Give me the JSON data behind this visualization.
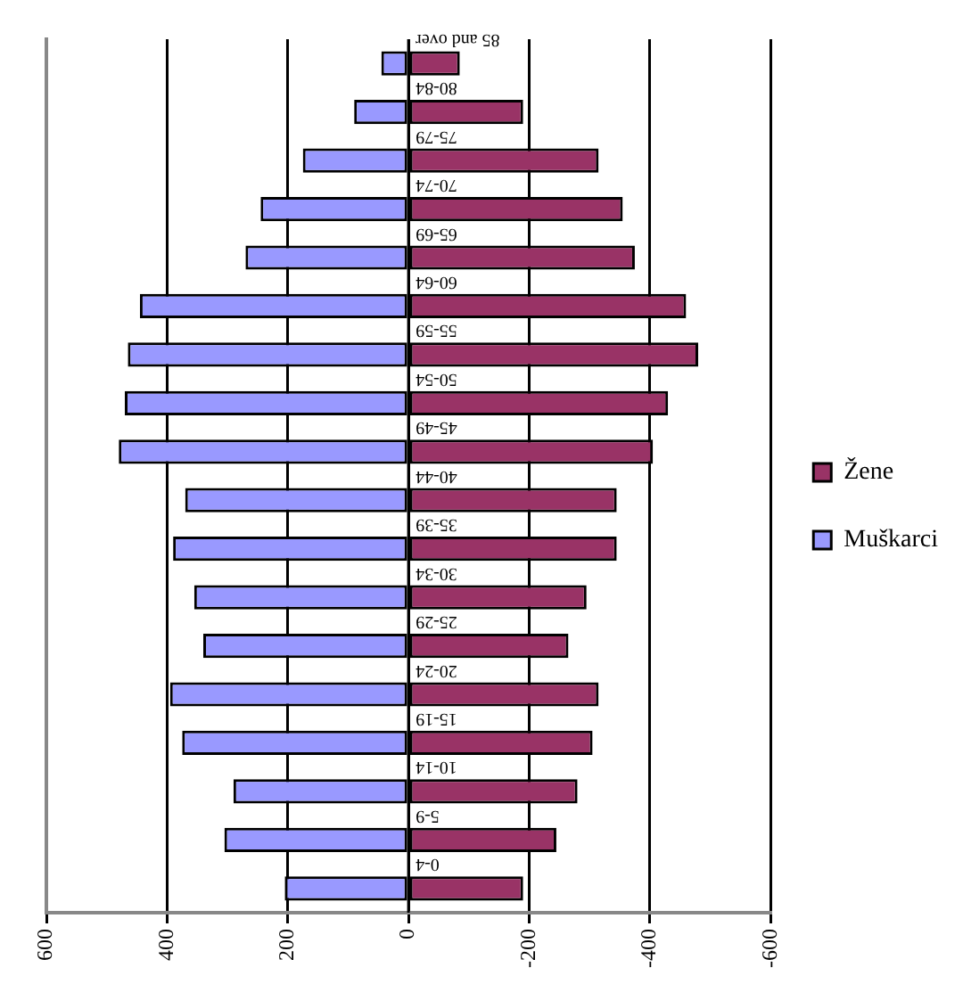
{
  "chart_data": {
    "type": "bar",
    "orientation": "horizontal",
    "stacked": true,
    "categories": [
      "85 and over",
      "80-84",
      "75-79",
      "70-74",
      "65-69",
      "60-64",
      "55-59",
      "50-54",
      "45-49",
      "40-44",
      "35-39",
      "30-34",
      "25-29",
      "20-24",
      "15-19",
      "10-14",
      "5-9",
      "0-4"
    ],
    "series": [
      {
        "name": "Muškarci",
        "color": "#9999ff",
        "values": [
          45,
          90,
          175,
          245,
          270,
          445,
          465,
          470,
          480,
          370,
          390,
          355,
          340,
          395,
          375,
          290,
          305,
          205
        ]
      },
      {
        "name": "Žene",
        "color": "#993366",
        "values": [
          -85,
          -190,
          -315,
          -355,
          -375,
          -460,
          -480,
          -430,
          -405,
          -345,
          -345,
          -295,
          -265,
          -315,
          -305,
          -280,
          -245,
          -190
        ]
      }
    ],
    "xlim": [
      600,
      -600
    ],
    "xticks": [
      600,
      400,
      200,
      0,
      -200,
      -400,
      -600
    ],
    "grid": "x",
    "legend": "right"
  }
}
